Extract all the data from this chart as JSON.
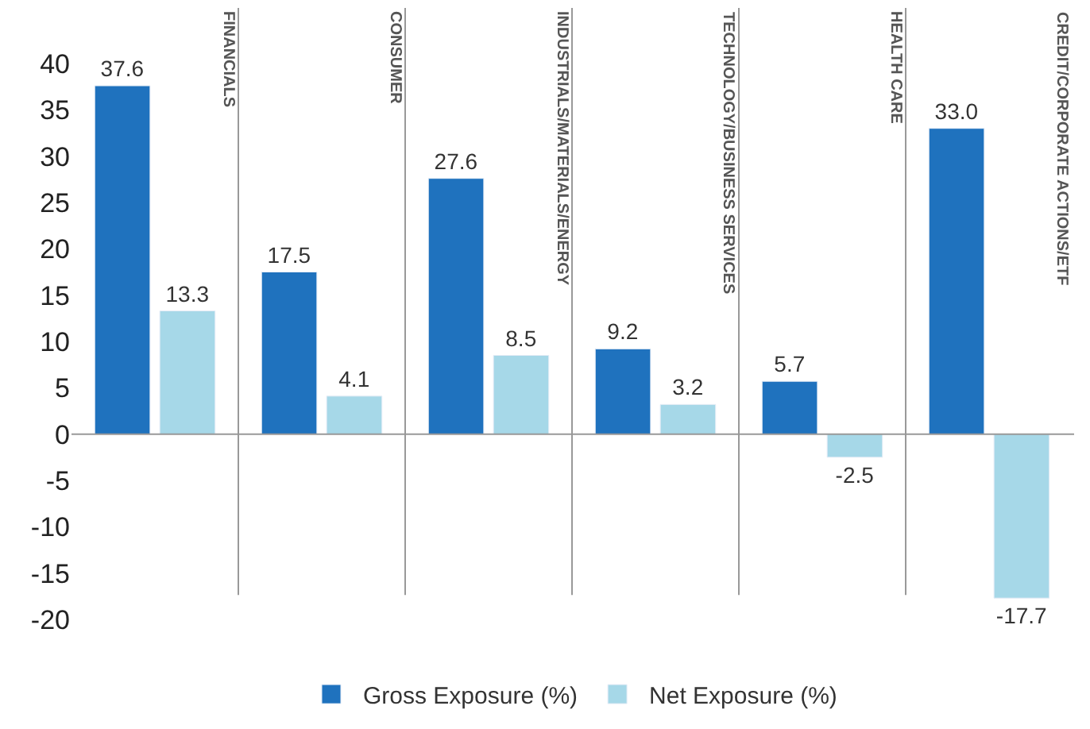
{
  "chart_data": {
    "type": "bar",
    "categories": [
      null,
      null,
      null,
      null,
      null,
      null
    ],
    "annotations": [
      "FINANCIALS",
      "CONSUMER",
      "INDUSTRIALS/MATERIALS/ENERGY",
      "TECHNOLOGY/BUSINESS SERVICES",
      "HEALTH CARE",
      "CREDIT/CORPORATE ACTIONS/ETF"
    ],
    "series": [
      {
        "name": "Gross Exposure (%)",
        "color": "#1f72be",
        "values": [
          37.6,
          17.5,
          27.6,
          9.2,
          5.7,
          33.0
        ],
        "value_labels": [
          "37.6",
          "17.5",
          "27.6",
          "9.2",
          "5.7",
          "33.0"
        ]
      },
      {
        "name": "Net Exposure (%)",
        "color": "#a6d8e8",
        "values": [
          13.3,
          4.1,
          8.5,
          3.2,
          -2.5,
          -17.7
        ],
        "value_labels": [
          "13.3",
          "4.1",
          "8.5",
          "3.2",
          "-2.5",
          "-17.7"
        ]
      }
    ],
    "ylim": [
      -20,
      46
    ],
    "ref_lines": [
      {
        "axis": "y",
        "value": 0,
        "color": "#999999"
      }
    ],
    "yticks": [
      -20,
      -15,
      -10,
      -5,
      0,
      5,
      10,
      15,
      20,
      25,
      30,
      35,
      40
    ],
    "legend": "bottom",
    "tick_labels": "y"
  }
}
